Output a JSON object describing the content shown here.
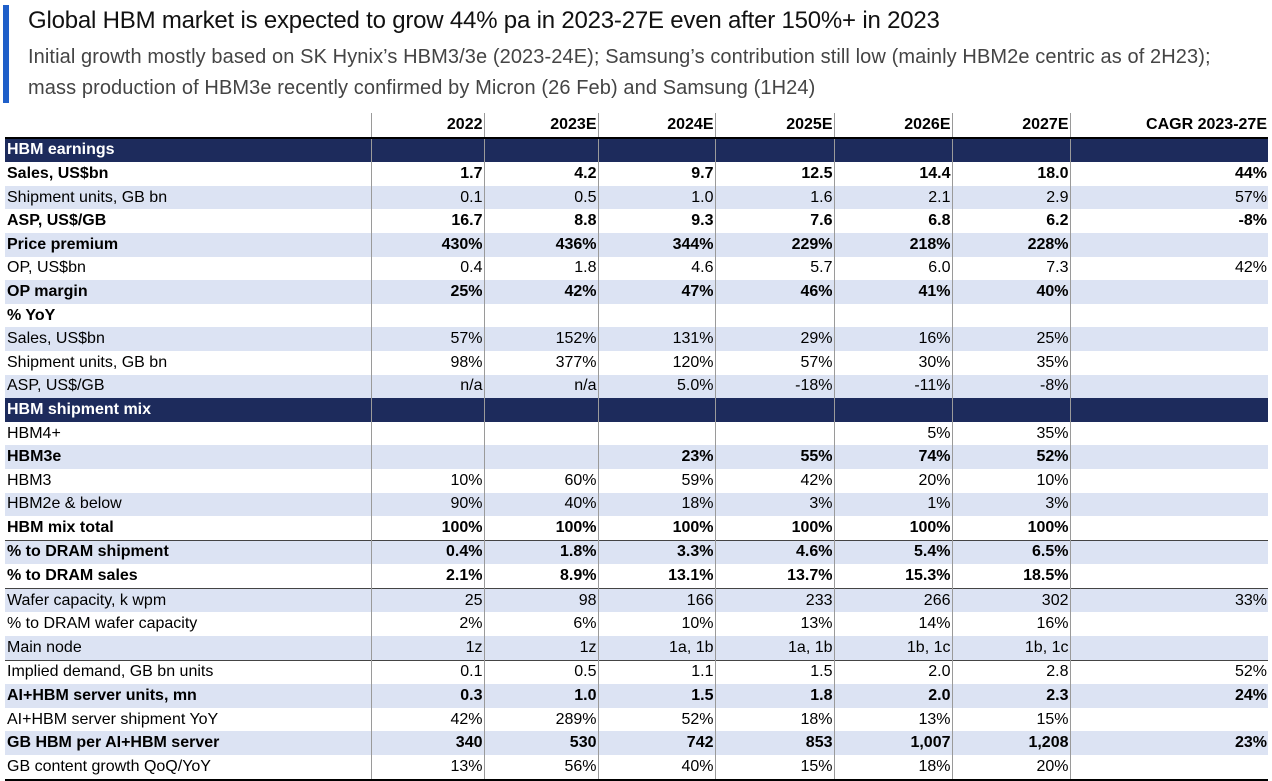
{
  "header": {
    "title": "Global HBM market is expected to grow 44% pa in 2023-27E even after 150%+ in 2023",
    "subtitle": "Initial growth mostly based on SK Hynix’s HBM3/3e (2023-24E); Samsung’s contribution still low (mainly HBM2e centric as of 2H23); mass production of HBM3e recently confirmed by Micron (26 Feb) and Samsung (1H24)"
  },
  "table": {
    "columns": [
      "",
      "2022",
      "2023E",
      "2024E",
      "2025E",
      "2026E",
      "2027E",
      "CAGR 2023-27E"
    ],
    "rows": [
      {
        "cells": [
          "HBM earnings",
          "",
          "",
          "",
          "",
          "",
          "",
          ""
        ],
        "style": "section"
      },
      {
        "cells": [
          "Sales, US$bn",
          "1.7",
          "4.2",
          "9.7",
          "12.5",
          "14.4",
          "18.0",
          "44%"
        ],
        "style": "bold"
      },
      {
        "cells": [
          "Shipment units, GB bn",
          "0.1",
          "0.5",
          "1.0",
          "1.6",
          "2.1",
          "2.9",
          "57%"
        ],
        "style": "shade"
      },
      {
        "cells": [
          "ASP, US$/GB",
          "16.7",
          "8.8",
          "9.3",
          "7.6",
          "6.8",
          "6.2",
          "-8%"
        ],
        "style": "bold"
      },
      {
        "cells": [
          "Price premium",
          "430%",
          "436%",
          "344%",
          "229%",
          "218%",
          "228%",
          ""
        ],
        "style": "shade bold"
      },
      {
        "cells": [
          "OP, US$bn",
          "0.4",
          "1.8",
          "4.6",
          "5.7",
          "6.0",
          "7.3",
          "42%"
        ],
        "style": ""
      },
      {
        "cells": [
          "OP margin",
          "25%",
          "42%",
          "47%",
          "46%",
          "41%",
          "40%",
          ""
        ],
        "style": "shade bold"
      },
      {
        "cells": [
          "% YoY",
          "",
          "",
          "",
          "",
          "",
          "",
          ""
        ],
        "style": "yoyhead"
      },
      {
        "cells": [
          "Sales, US$bn",
          "57%",
          "152%",
          "131%",
          "29%",
          "16%",
          "25%",
          ""
        ],
        "style": "shade"
      },
      {
        "cells": [
          "Shipment units, GB bn",
          "98%",
          "377%",
          "120%",
          "57%",
          "30%",
          "35%",
          ""
        ],
        "style": ""
      },
      {
        "cells": [
          "ASP, US$/GB",
          "n/a",
          "n/a",
          "5.0%",
          "-18%",
          "-11%",
          "-8%",
          ""
        ],
        "style": "shade"
      },
      {
        "cells": [
          "HBM shipment mix",
          "",
          "",
          "",
          "",
          "",
          "",
          ""
        ],
        "style": "section"
      },
      {
        "cells": [
          "HBM4+",
          "",
          "",
          "",
          "",
          "5%",
          "35%",
          ""
        ],
        "style": ""
      },
      {
        "cells": [
          "HBM3e",
          "",
          "",
          "23%",
          "55%",
          "74%",
          "52%",
          ""
        ],
        "style": "shade bold"
      },
      {
        "cells": [
          "HBM3",
          "10%",
          "60%",
          "59%",
          "42%",
          "20%",
          "10%",
          ""
        ],
        "style": ""
      },
      {
        "cells": [
          "HBM2e & below",
          "90%",
          "40%",
          "18%",
          "3%",
          "1%",
          "3%",
          ""
        ],
        "style": "shade"
      },
      {
        "cells": [
          "HBM mix total",
          "100%",
          "100%",
          "100%",
          "100%",
          "100%",
          "100%",
          ""
        ],
        "style": "bold"
      },
      {
        "cells": [
          "% to DRAM shipment",
          "0.4%",
          "1.8%",
          "3.3%",
          "4.6%",
          "5.4%",
          "6.5%",
          ""
        ],
        "style": "shade bold sep"
      },
      {
        "cells": [
          "% to DRAM sales",
          "2.1%",
          "8.9%",
          "13.1%",
          "13.7%",
          "15.3%",
          "18.5%",
          ""
        ],
        "style": "bold"
      },
      {
        "cells": [
          "Wafer capacity, k wpm",
          "25",
          "98",
          "166",
          "233",
          "266",
          "302",
          "33%"
        ],
        "style": "shade sep"
      },
      {
        "cells": [
          "% to DRAM wafer capacity",
          "2%",
          "6%",
          "10%",
          "13%",
          "14%",
          "16%",
          ""
        ],
        "style": ""
      },
      {
        "cells": [
          "Main node",
          "1z",
          "1z",
          "1a, 1b",
          "1a, 1b",
          "1b, 1c",
          "1b, 1c",
          ""
        ],
        "style": "shade"
      },
      {
        "cells": [
          "Implied demand, GB bn units",
          "0.1",
          "0.5",
          "1.1",
          "1.5",
          "2.0",
          "2.8",
          "52%"
        ],
        "style": "sep"
      },
      {
        "cells": [
          "AI+HBM server units, mn",
          "0.3",
          "1.0",
          "1.5",
          "1.8",
          "2.0",
          "2.3",
          "24%"
        ],
        "style": "shade bold"
      },
      {
        "cells": [
          "AI+HBM server shipment YoY",
          "42%",
          "289%",
          "52%",
          "18%",
          "13%",
          "15%",
          ""
        ],
        "style": ""
      },
      {
        "cells": [
          "GB HBM per AI+HBM server",
          "340",
          "530",
          "742",
          "853",
          "1,007",
          "1,208",
          "23%"
        ],
        "style": "shade bold"
      },
      {
        "cells": [
          "GB content growth QoQ/YoY",
          "13%",
          "56%",
          "40%",
          "15%",
          "18%",
          "20%",
          ""
        ],
        "style": "last"
      }
    ]
  }
}
